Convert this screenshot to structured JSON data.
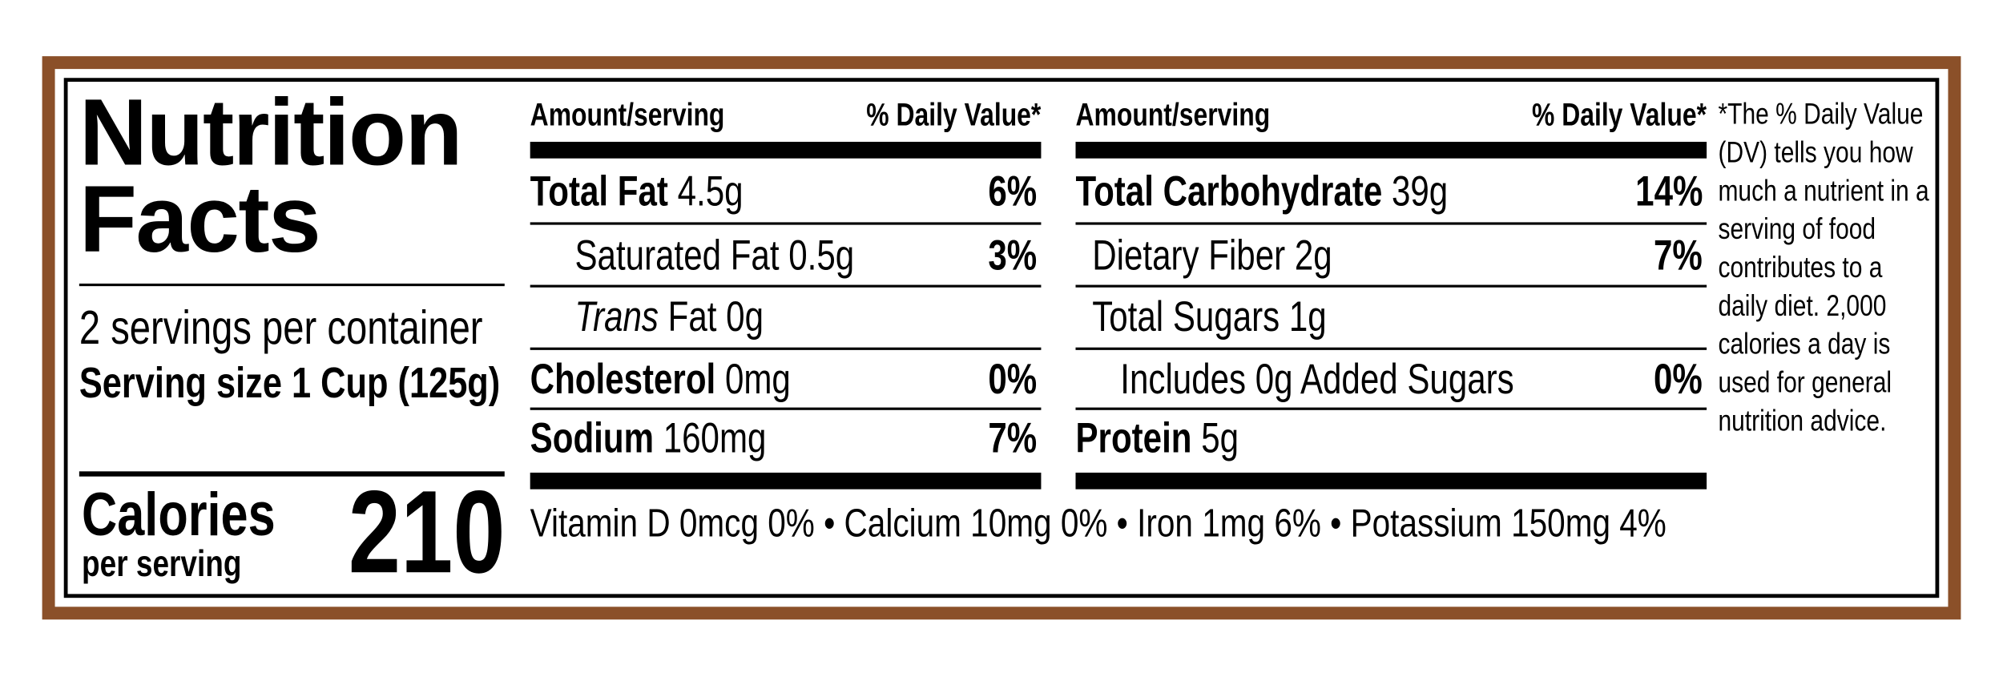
{
  "title": "Nutrition Facts",
  "servings": "2 servings per container",
  "serving_size": "Serving size 1 Cup (125g)",
  "calories": {
    "label": "Calories",
    "per": "per serving",
    "value": 210
  },
  "columns": [
    {
      "header": {
        "amount": "Amount/serving",
        "dv": "% Daily Value*"
      },
      "rows": [
        {
          "name": "Total Fat",
          "amount": "4.5g",
          "dv": "6%",
          "bold": true,
          "level": 0
        },
        {
          "name": "Saturated Fat",
          "amount": "0.5g",
          "dv": "3%",
          "level": 1
        },
        {
          "prefix": "Trans",
          "name": "Fat",
          "amount": "0g",
          "level": 1
        },
        {
          "name": "Cholesterol",
          "amount": "0mg",
          "dv": "0%",
          "bold": true,
          "level": 0
        },
        {
          "name": "Sodium",
          "amount": "160mg",
          "dv": "7%",
          "bold": true,
          "level": 0
        }
      ]
    },
    {
      "header": {
        "amount": "Amount/serving",
        "dv": "% Daily Value*"
      },
      "rows": [
        {
          "name": "Total Carbohydrate",
          "amount": "39g",
          "dv": "14%",
          "bold": true,
          "level": 0
        },
        {
          "name": "Dietary Fiber",
          "amount": "2g",
          "dv": "7%",
          "level": 1
        },
        {
          "name": "Total Sugars",
          "amount": "1g",
          "level": 1
        },
        {
          "name": "Includes 0g Added Sugars",
          "dv": "0%",
          "level": 2
        },
        {
          "name": "Protein",
          "amount": "5g",
          "bold": true,
          "level": 0
        }
      ]
    }
  ],
  "vitamins": "Vitamin D 0mcg 0% • Calcium 10mg 0% • Iron 1mg 6% • Potassium 150mg 4%",
  "footnote": "*The % Daily Value (DV) tells you how much a nutrient in a serving of food contributes to a daily diet. 2,000 calories a day is used for general nutrition advice."
}
